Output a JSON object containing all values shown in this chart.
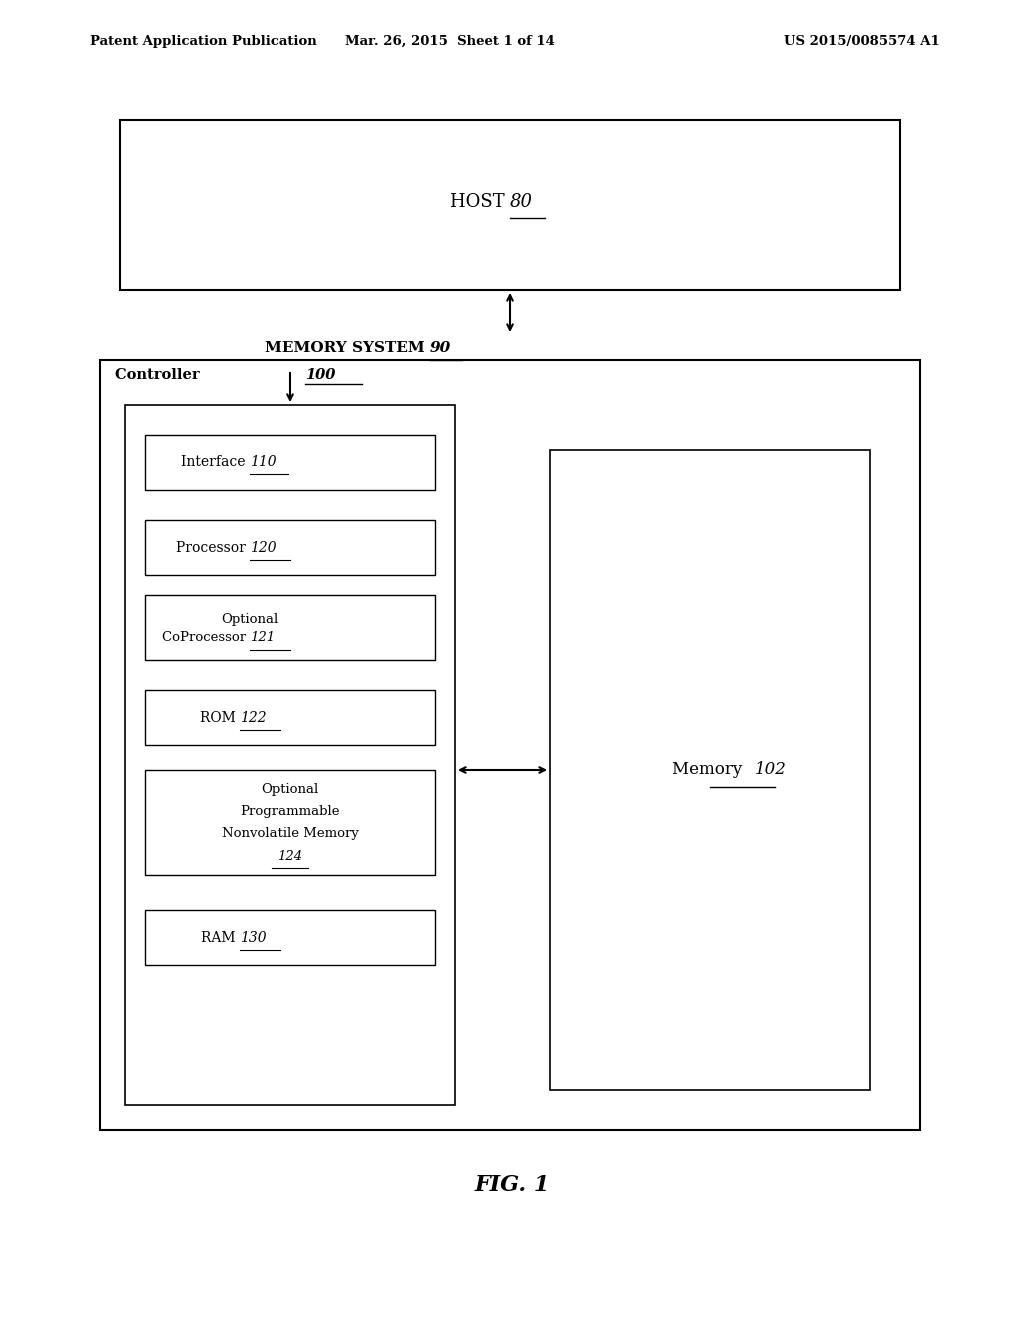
{
  "background_color": "#ffffff",
  "header_left": "Patent Application Publication",
  "header_center": "Mar. 26, 2015  Sheet 1 of 14",
  "header_right": "US 2015/0085574 A1",
  "figure_label": "FIG. 1",
  "host_label": "HOST",
  "host_number": "80",
  "memory_system_label": "MEMORY SYSTEM",
  "memory_system_number": "90",
  "controller_label": "Controller",
  "controller_number": "100",
  "memory_label": "Memory",
  "memory_number": "102",
  "boxes": [
    {
      "label": "Interface",
      "number": "110"
    },
    {
      "label": "Processor",
      "number": "120"
    },
    {
      "label": "Optional\nCoProcessor",
      "number": "121"
    },
    {
      "label": "ROM",
      "number": "122"
    },
    {
      "label": "Optional\nProgrammable\nNonvolatile Memory\n124",
      "number": ""
    },
    {
      "label": "RAM",
      "number": "130"
    }
  ]
}
